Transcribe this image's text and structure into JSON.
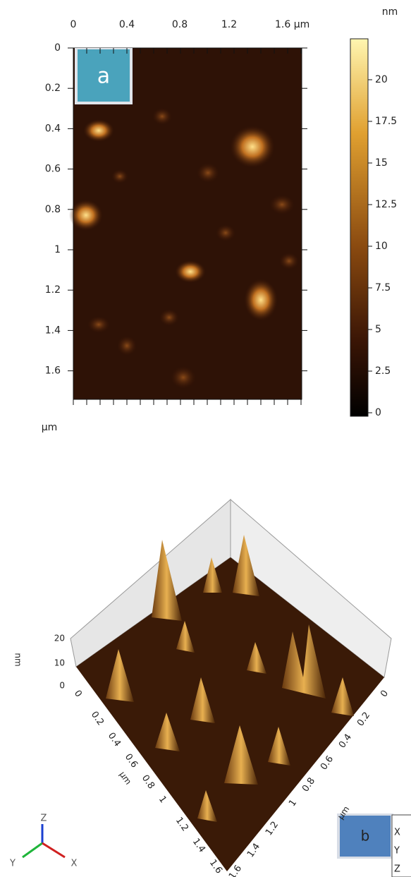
{
  "panel_a": {
    "label": "a",
    "x_ticks": [
      "0",
      "0.4",
      "0.8",
      "1.2",
      "1.6 µm"
    ],
    "y_ticks": [
      "0",
      "0.2",
      "0.4",
      "0.6",
      "0.8",
      "1",
      "1.2",
      "1.4",
      "1.6"
    ],
    "y_unit": "µm",
    "colorbar": {
      "unit": "nm",
      "ticks": [
        "20",
        "17.5",
        "15",
        "12.5",
        "10",
        "7.5",
        "5",
        "2.5",
        "0"
      ]
    }
  },
  "panel_b": {
    "label": "b",
    "z_unit": "nm",
    "z_ticks": [
      "20",
      "10",
      "0"
    ],
    "left_axis_ticks": [
      "0",
      "0.2",
      "0.4",
      "0.6",
      "0.8",
      "1",
      "1.2",
      "1.4",
      "1.6"
    ],
    "right_axis_ticks": [
      "0",
      "0.2",
      "0.4",
      "0.6",
      "0.8",
      "1",
      "1.2",
      "1.4",
      "1.6"
    ],
    "left_axis_unit": "µm",
    "right_axis_unit": "µm",
    "triad": {
      "x": "X",
      "y": "Y",
      "z": "Z"
    },
    "legend_fragment": [
      "X",
      "Y",
      "Z"
    ]
  }
}
